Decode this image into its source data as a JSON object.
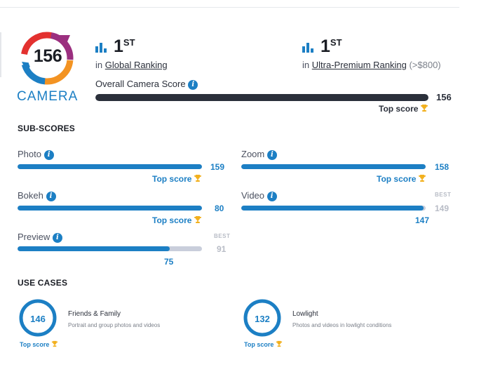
{
  "colors": {
    "accent": "#1c7fc4",
    "dark_bar": "#2b303b",
    "track": "#c9cedb",
    "trophy": "#f2b01e"
  },
  "badge": {
    "score": "156",
    "label": "CAMERA",
    "icon": "camera-score-badge-icon"
  },
  "ranking": {
    "global": {
      "position": "1",
      "suffix": "ST",
      "prefix": "in",
      "link": "Global Ranking"
    },
    "segment": {
      "position": "1",
      "suffix": "ST",
      "prefix": "in",
      "link": "Ultra-Premium Ranking",
      "extra": "(>$800)"
    }
  },
  "overall": {
    "label": "Overall Camera Score",
    "value": "156",
    "fill_fraction": 1.0,
    "top_score_label": "Top score"
  },
  "subscores": {
    "title": "SUB-SCORES",
    "photo": {
      "label": "Photo",
      "value": "159",
      "fill_fraction": 1.0,
      "top_score_label": "Top score"
    },
    "zoom": {
      "label": "Zoom",
      "value": "158",
      "fill_fraction": 1.0,
      "top_score_label": "Top score"
    },
    "bokeh": {
      "label": "Bokeh",
      "value": "80",
      "fill_fraction": 1.0,
      "top_score_label": "Top score"
    },
    "video": {
      "label": "Video",
      "value": "147",
      "best_label": "BEST",
      "best_value": "149",
      "fill_fraction": 0.987
    },
    "preview": {
      "label": "Preview",
      "value": "75",
      "best_label": "BEST",
      "best_value": "91",
      "fill_fraction": 0.824
    }
  },
  "use_cases": {
    "title": "USE CASES",
    "friends": {
      "score": "146",
      "title": "Friends & Family",
      "desc": "Portrait and group photos and videos",
      "top_score_label": "Top score"
    },
    "lowlight": {
      "score": "132",
      "title": "Lowlight",
      "desc": "Photos and videos in lowlight conditions",
      "top_score_label": "Top score"
    }
  }
}
